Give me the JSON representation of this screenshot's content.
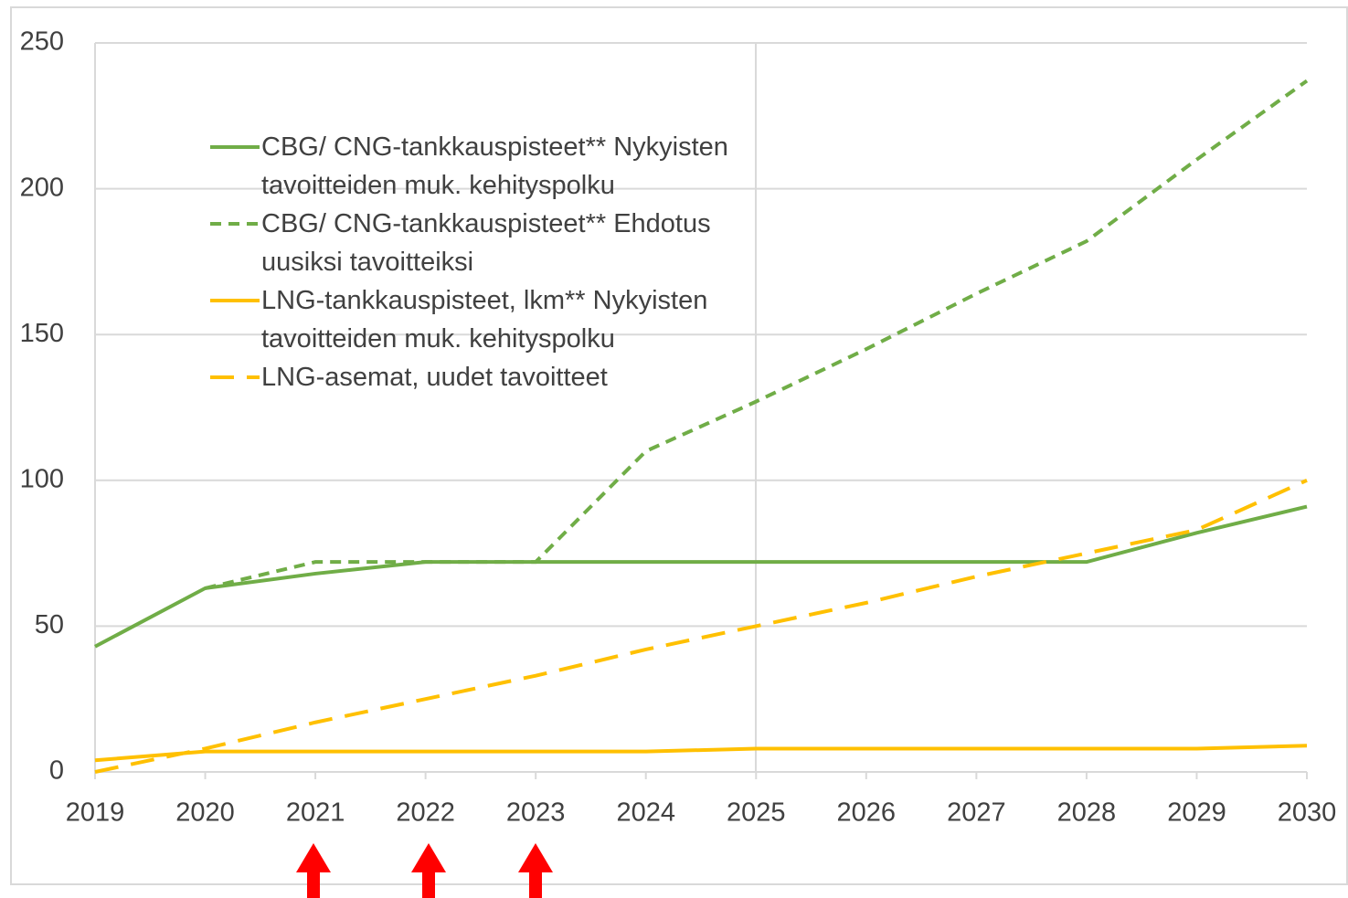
{
  "chart_data": {
    "type": "line",
    "x": [
      2019,
      2020,
      2021,
      2022,
      2023,
      2024,
      2025,
      2026,
      2027,
      2028,
      2029,
      2030
    ],
    "xlim": [
      2019,
      2030
    ],
    "xticks": [
      2019,
      2020,
      2021,
      2022,
      2023,
      2024,
      2025,
      2026,
      2027,
      2028,
      2029,
      2030
    ],
    "ylim": [
      0,
      250
    ],
    "yticks": [
      0,
      50,
      100,
      150,
      200,
      250
    ],
    "grid": true,
    "legend": "upper left",
    "series": [
      {
        "name": "CBG/ CNG-tankkauspisteet** Nykyisten tavoitteiden muk. kehityspolku",
        "color": "#70ad47",
        "dash": "solid",
        "values": [
          43,
          63,
          68,
          72,
          72,
          72,
          72,
          72,
          72,
          72,
          82,
          91
        ]
      },
      {
        "name": "CBG/ CNG-tankkauspisteet** Ehdotus uusiksi tavoitteiksi",
        "color": "#70ad47",
        "dash": "dashed",
        "values": [
          null,
          63,
          72,
          72,
          72,
          110,
          127,
          145,
          164,
          182,
          210,
          237
        ]
      },
      {
        "name": "LNG-tankkauspisteet, lkm** Nykyisten tavoitteiden muk. kehityspolku",
        "color": "#ffc000",
        "dash": "solid",
        "values": [
          4,
          7,
          7,
          7,
          7,
          7,
          8,
          8,
          8,
          8,
          8,
          9
        ]
      },
      {
        "name": "LNG-asemat, uudet tavoitteet",
        "color": "#ffc000",
        "dash": "longdash",
        "values": [
          0,
          8,
          17,
          25,
          33,
          42,
          50,
          58,
          67,
          75,
          83,
          100
        ]
      }
    ]
  }
}
